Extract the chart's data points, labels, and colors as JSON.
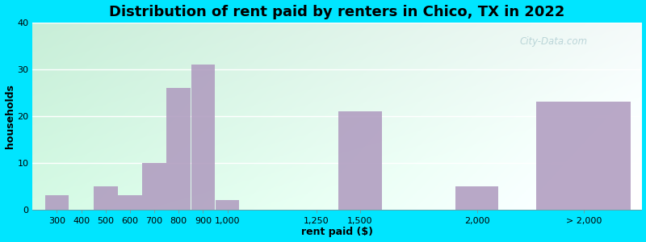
{
  "title": "Distribution of rent paid by renters in Chico, TX in 2022",
  "xlabel": "rent paid ($)",
  "ylabel": "households",
  "ylim": [
    0,
    40
  ],
  "yticks": [
    0,
    10,
    20,
    30,
    40
  ],
  "bar_labels": [
    "300",
    "400",
    "500",
    "600",
    "700",
    "800",
    "900",
    "1,000",
    "1,250",
    "1,500",
    "2,000",
    "> 2,000"
  ],
  "bar_values": [
    3,
    0,
    5,
    3,
    10,
    26,
    31,
    2,
    0,
    21,
    5,
    23
  ],
  "bar_color": "#b09cc0",
  "bg_gradient_topleft": "#c8eed8",
  "bg_gradient_topright": "#f0f4f4",
  "bg_gradient_bottomleft": "#c8eed8",
  "bg_gradient_bottomright": "#f0f4f4",
  "outer_bg": "#00e5ff",
  "title_fontsize": 13,
  "axis_label_fontsize": 9,
  "tick_fontsize": 8,
  "watermark_text": "City-Data.com",
  "watermark_color": "#90b8c0",
  "watermark_alpha": 0.55
}
